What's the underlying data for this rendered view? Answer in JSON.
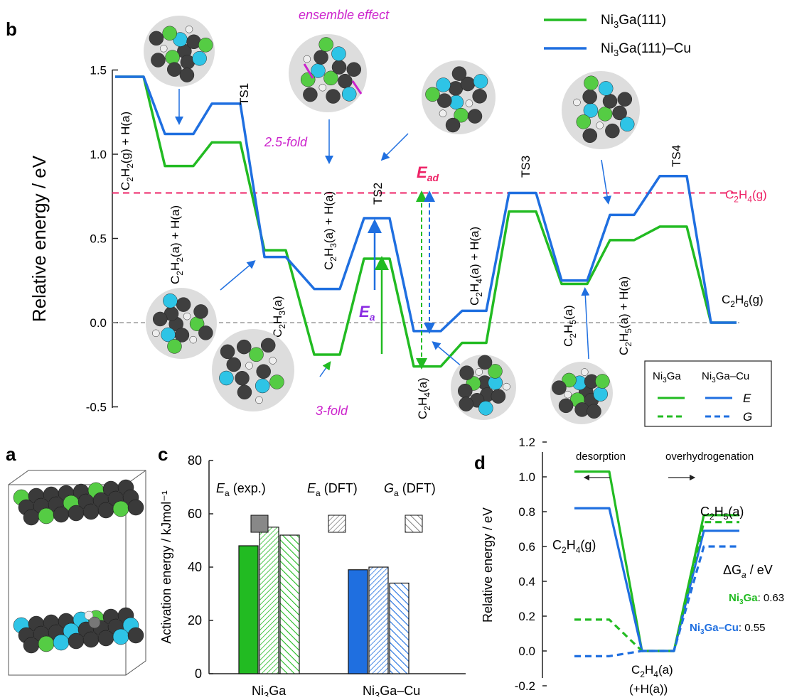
{
  "panel_b": {
    "letter": "b",
    "chart_data": {
      "type": "line",
      "ylabel": "Relative energy / eV",
      "ylim": [
        -0.55,
        1.55
      ],
      "yticks": [
        "-0.5",
        "0.0",
        "0.5",
        "1.0",
        "1.5"
      ],
      "series": [
        {
          "name": "Ni3Ga(111)",
          "color": "#22bb22",
          "levels": [
            1.46,
            0.93,
            1.07,
            0.43,
            -0.19,
            0.38,
            -0.26,
            -0.12,
            0.66,
            0.23,
            0.49,
            0.57,
            0.0
          ]
        },
        {
          "name": "Ni3Ga(111)–Cu",
          "color": "#1f6fe0",
          "levels": [
            1.46,
            1.12,
            1.3,
            0.39,
            0.2,
            0.62,
            -0.05,
            0.07,
            0.77,
            0.25,
            0.64,
            0.87,
            0.0
          ]
        }
      ],
      "state_labels": {
        "s0": "C2H2(g) + H(a)",
        "s1": "C2H2(a) + H(a)",
        "ts1": "TS1",
        "s2": "C2H3(a)",
        "s3": "C2H3(a) + H(a)",
        "ts2": "TS2",
        "s4": "C2H4(a)",
        "s5": "C2H4(a) + H(a)",
        "ts3": "TS3",
        "s6": "C2H5(a)",
        "s7": "C2H5(a) + H(a)",
        "ts4": "TS4",
        "s8": "C2H6(g)"
      },
      "reference_line": {
        "label": "C2H4(g)",
        "value": 0.77,
        "color": "#ee2266"
      },
      "annotations": {
        "ensemble": "ensemble effect",
        "fold25": "2.5-fold",
        "fold3": "3-fold",
        "ea": "E",
        "ea_sub": "a",
        "ead": "E",
        "ead_sub": "ad"
      },
      "legend_top": [
        "Ni3Ga(111)",
        "Ni3Ga(111)–Cu"
      ],
      "legend_box": {
        "col1": "Ni3Ga",
        "col2": "Ni3Ga–Cu",
        "row_e": "E",
        "row_g": "G"
      }
    }
  },
  "panel_a": {
    "letter": "a"
  },
  "panel_c": {
    "letter": "c",
    "chart_data": {
      "type": "bar",
      "categories": [
        "Ni3Ga",
        "Ni3Ga–Cu"
      ],
      "series": [
        {
          "name": "Ea (exp.)",
          "values": [
            48,
            39
          ]
        },
        {
          "name": "Ea (DFT)",
          "values": [
            55,
            40
          ]
        },
        {
          "name": "Ga (DFT)",
          "values": [
            52,
            34
          ]
        }
      ],
      "ylabel": "Activation energy / kJmol⁻¹",
      "ylim": [
        0,
        80
      ],
      "yticks": [
        "0",
        "20",
        "40",
        "60",
        "80"
      ],
      "legend_labels": [
        {
          "sym": "E",
          "sub": "a",
          "txt": " (exp.)"
        },
        {
          "sym": "E",
          "sub": "a",
          "txt": " (DFT)"
        },
        {
          "sym": "G",
          "sub": "a",
          "txt": " (DFT)"
        }
      ]
    }
  },
  "panel_d": {
    "letter": "d",
    "chart_data": {
      "type": "line",
      "ylabel": "Relative energy / eV",
      "ylim": [
        -0.2,
        1.2
      ],
      "yticks": [
        "-0.2",
        "0.0",
        "0.2",
        "0.4",
        "0.6",
        "0.8",
        "1.0",
        "1.2"
      ],
      "series": [
        {
          "name": "Ni3Ga E",
          "levels": [
            1.03,
            0.0,
            0.78
          ],
          "style": "solid",
          "color": "#22bb22"
        },
        {
          "name": "Ni3Ga–Cu E",
          "levels": [
            0.82,
            0.0,
            0.69
          ],
          "style": "solid",
          "color": "#1f6fe0"
        },
        {
          "name": "Ni3Ga G",
          "levels": [
            0.18,
            0.0,
            0.74
          ],
          "style": "dashed",
          "color": "#22bb22"
        },
        {
          "name": "Ni3Ga–Cu G",
          "levels": [
            -0.03,
            0.0,
            0.6
          ],
          "style": "dashed",
          "color": "#1f6fe0"
        }
      ],
      "labels": {
        "desorption": "desorption",
        "overhydrogenation": "overhydrogenation",
        "c2h4g": "C2H4(g)",
        "c2h5a": "C2H5(a)",
        "c2h4a": "C2H4(a)",
        "hplus": "(+H(a))",
        "dga": "ΔGa / eV",
        "niga": "Ni3Ga",
        "niga_val": ": 0.63",
        "nigacu": "Ni3Ga–Cu",
        "nigacu_val": ": 0.55"
      }
    }
  }
}
